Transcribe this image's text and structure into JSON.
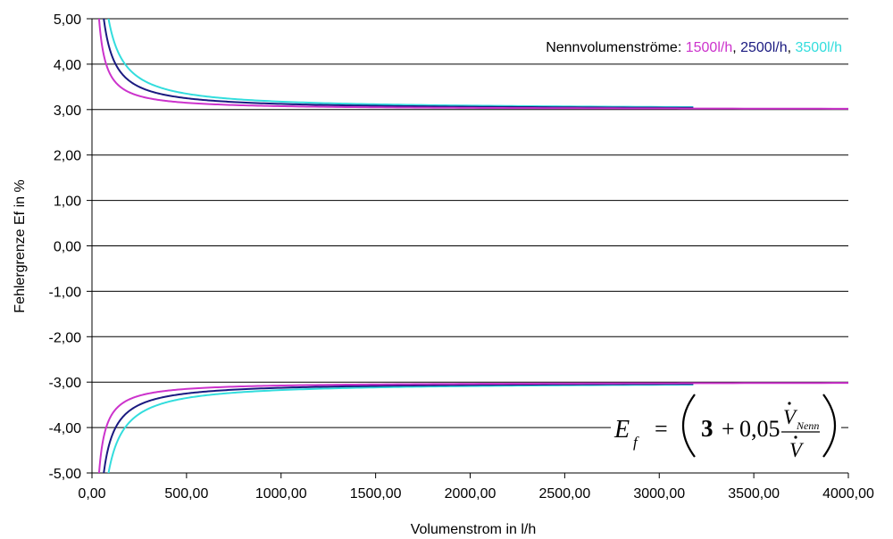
{
  "chart_data": {
    "type": "line",
    "title": "",
    "xlabel": "Volumenstrom in l/h",
    "ylabel": "Fehlergrenze Ef in %",
    "xlim": [
      0,
      4000
    ],
    "ylim": [
      -5,
      5
    ],
    "x_ticks": [
      "0,00",
      "500,00",
      "1000,00",
      "1500,00",
      "2000,00",
      "2500,00",
      "3000,00",
      "3500,00",
      "4000,00"
    ],
    "x_tick_values": [
      0,
      500,
      1000,
      1500,
      2000,
      2500,
      3000,
      3500,
      4000
    ],
    "y_ticks": [
      "5,00",
      "4,00",
      "3,00",
      "2,00",
      "1,00",
      "0,00",
      "-1,00",
      "-2,00",
      "-3,00",
      "-4,00",
      "-5,00"
    ],
    "y_tick_values": [
      5,
      4,
      3,
      2,
      1,
      0,
      -1,
      -2,
      -3,
      -4,
      -5
    ],
    "grid": true,
    "formula": "E_f = ±(3 + 0,05 · V̇_Nenn / V̇)",
    "series": [
      {
        "label_text": "1500l/h",
        "color": "#cc33cc",
        "nominal": 1500,
        "x_end": 4000
      },
      {
        "label_text": "2500l/h",
        "color": "#1a1a80",
        "nominal": 2500,
        "x_end": 3180
      },
      {
        "label_text": "3500l/h",
        "color": "#33dddd",
        "nominal": 3500,
        "x_end": 3180
      }
    ],
    "legend": {
      "position": "top-right",
      "prefix": "Nennvolumenströme: ",
      "separator": ", "
    }
  },
  "formula_parts": {
    "lhs": "E",
    "lhs_sub": "f",
    "equals": "=",
    "const": "3",
    "plus": "+",
    "coef": "0,05",
    "num": "V",
    "num_sub": "Nenn",
    "den": "V"
  }
}
